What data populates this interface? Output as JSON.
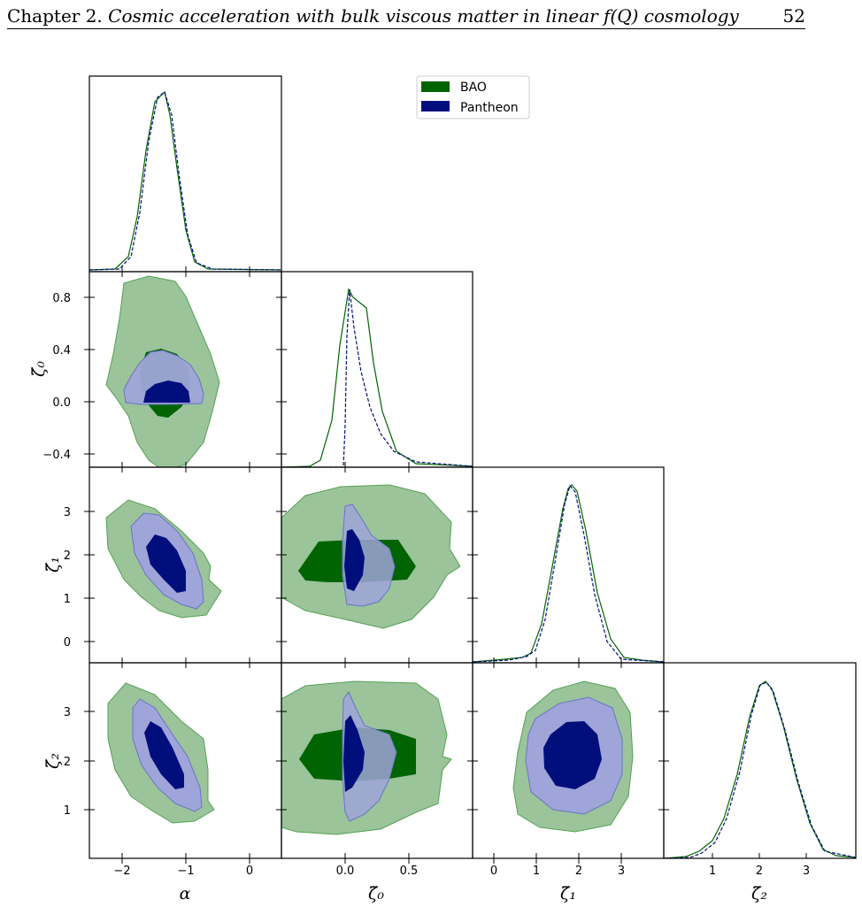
{
  "header": {
    "chapter": "Chapter 2.",
    "title_prefix": "Cosmic acceleration with bulk viscous matter in linear ",
    "title_fq": "f(Q)",
    "title_suffix": " cosmology",
    "page_number": "52"
  },
  "legend": [
    "BAO",
    "Pantheon"
  ],
  "colors": {
    "bao_dark": "#006400",
    "bao_light": "#9bc49b",
    "pantheon_dark": "#000f7c",
    "pantheon_light": "#9fa5d8"
  },
  "chart_data": {
    "type": "corner",
    "parameters": [
      "α",
      "ζ̃₀",
      "ζ̃₁",
      "ζ̃₂"
    ],
    "series": [
      {
        "name": "BAO",
        "mean": {
          "alpha": -1.3,
          "zeta0": 0.12,
          "zeta1": 1.8,
          "zeta2": 2.1
        }
      },
      {
        "name": "Pantheon",
        "mean": {
          "alpha": -1.3,
          "zeta0": 0.04,
          "zeta1": 1.8,
          "zeta2": 2.1
        }
      }
    ],
    "axes": {
      "alpha": {
        "range": [
          -2.6,
          0.5
        ],
        "ticks": [
          -2,
          -1,
          0
        ],
        "label": "α"
      },
      "zeta0": {
        "range": [
          -0.5,
          1.0
        ],
        "ticks": [
          0.0,
          0.5
        ],
        "ticks_y": [
          -0.4,
          0.0,
          0.4,
          0.8
        ],
        "label": "ζ̃₀"
      },
      "zeta1": {
        "range": [
          -0.5,
          4.0
        ],
        "ticks_x": [
          0,
          1,
          2,
          3
        ],
        "ticks_y": [
          0,
          1,
          2,
          3
        ],
        "label": "ζ̃₁"
      },
      "zeta2": {
        "range": [
          0.0,
          4.0
        ],
        "ticks_x": [
          1,
          2,
          3
        ],
        "ticks_y": [
          1,
          2,
          3
        ],
        "label": "ζ̃₂"
      }
    },
    "tick_labels": {
      "alpha": [
        "−2",
        "−1",
        "0"
      ],
      "zeta0_x": [
        "0.0",
        "0.5"
      ],
      "zeta0_y": [
        "0.8",
        "0.4",
        "0.0",
        "−0.4"
      ],
      "zeta1_x": [
        "0",
        "1",
        "2",
        "3"
      ],
      "zeta1_y": [
        "3",
        "2",
        "1",
        "0"
      ],
      "zeta2_x": [
        "1",
        "2",
        "3"
      ],
      "zeta2_y": [
        "3",
        "2",
        "1"
      ]
    }
  }
}
